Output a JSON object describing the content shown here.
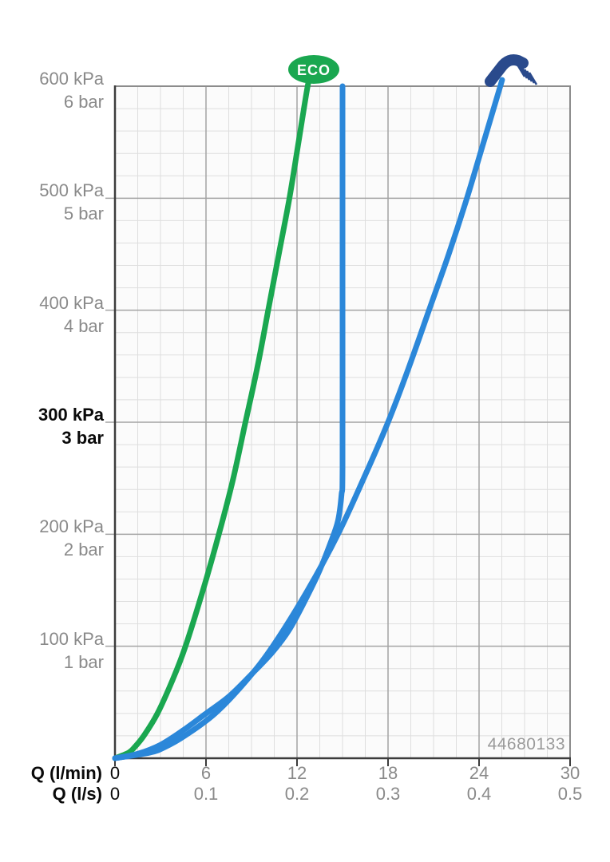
{
  "chart_data": {
    "type": "line",
    "description": "Flow rate vs supply pressure diagram for a shower fitting",
    "annotation": "44680133",
    "grid": true,
    "x_axis": {
      "title_lmin": "Q (l/min)",
      "title_ls": "Q (l/s)",
      "range_lmin": [
        0,
        30
      ],
      "ticks_lmin": [
        "0",
        "6",
        "12",
        "18",
        "24",
        "30"
      ],
      "ticks_ls": [
        "0",
        "0.1",
        "0.2",
        "0.3",
        "0.4",
        "0.5"
      ],
      "minor_divisions_per_major": 4
    },
    "y_axis": {
      "range_kpa": [
        0,
        600
      ],
      "minor_divisions_per_major": 5,
      "labels": [
        {
          "kpa": "600 kPa",
          "bar": "6 bar",
          "value": 600,
          "bold": false
        },
        {
          "kpa": "500 kPa",
          "bar": "5 bar",
          "value": 500,
          "bold": false
        },
        {
          "kpa": "400 kPa",
          "bar": "4 bar",
          "value": 400,
          "bold": false
        },
        {
          "kpa": "300 kPa",
          "bar": "3 bar",
          "value": 300,
          "bold": true
        },
        {
          "kpa": "200 kPa",
          "bar": "2 bar",
          "value": 200,
          "bold": false
        },
        {
          "kpa": "100 kPa",
          "bar": "1 bar",
          "value": 100,
          "bold": false
        }
      ]
    },
    "series": [
      {
        "name": "eco",
        "badge": "ECO",
        "color": "#1aa750",
        "units": [
          "l/min",
          "kPa"
        ],
        "points": [
          [
            0,
            0
          ],
          [
            0.9,
            5
          ],
          [
            1.3,
            10
          ],
          [
            1.9,
            20
          ],
          [
            2.8,
            40
          ],
          [
            3.8,
            70
          ],
          [
            4.65,
            100
          ],
          [
            5.8,
            150
          ],
          [
            6.85,
            200
          ],
          [
            7.8,
            250
          ],
          [
            8.6,
            300
          ],
          [
            9.4,
            350
          ],
          [
            10.1,
            400
          ],
          [
            10.8,
            450
          ],
          [
            11.5,
            500
          ],
          [
            12.1,
            550
          ],
          [
            12.7,
            600
          ]
        ]
      },
      {
        "name": "shower-regulated",
        "color": "#2b87d9",
        "units": [
          "l/min",
          "kPa"
        ],
        "points": [
          [
            0,
            0
          ],
          [
            1.5,
            4
          ],
          [
            3,
            12
          ],
          [
            4.5,
            25
          ],
          [
            6,
            40
          ],
          [
            7.5,
            55
          ],
          [
            9,
            75
          ],
          [
            10.4,
            95
          ],
          [
            11.5,
            115
          ],
          [
            12.5,
            140
          ],
          [
            13.4,
            165
          ],
          [
            14.2,
            192
          ],
          [
            14.7,
            212
          ],
          [
            14.93,
            235
          ],
          [
            15,
            260
          ],
          [
            15,
            420
          ],
          [
            15,
            600
          ]
        ]
      },
      {
        "name": "shower-free-flow",
        "icon": "hand-shower",
        "icon_color": "#2a4a8c",
        "color": "#2b87d9",
        "units": [
          "l/min",
          "kPa"
        ],
        "points": [
          [
            0,
            0
          ],
          [
            2.3,
            5
          ],
          [
            3.3,
            10
          ],
          [
            4.6,
            20
          ],
          [
            6.6,
            40
          ],
          [
            8.7,
            70
          ],
          [
            10.4,
            100
          ],
          [
            12.7,
            150
          ],
          [
            14.7,
            200
          ],
          [
            16.4,
            250
          ],
          [
            18,
            300
          ],
          [
            19.4,
            350
          ],
          [
            20.7,
            400
          ],
          [
            22,
            450
          ],
          [
            23.2,
            500
          ],
          [
            24.3,
            550
          ],
          [
            25.4,
            600
          ]
        ]
      }
    ],
    "layout_hints": {
      "legend_position": "none",
      "eco_badge_above_eco_curve": true,
      "hand_shower_icon_above_free_flow_curve": true
    }
  },
  "colors": {
    "grid_minor": "#dedede",
    "grid_major": "#a3a3a3",
    "axis": "#3c3c3c",
    "border": "#8c8c8c",
    "label_gray": "#8a8a8a",
    "label_black": "#0a0a0a",
    "eco_green": "#1aa750",
    "curve_blue": "#2b87d9",
    "icon_navy": "#2a4a8c"
  }
}
